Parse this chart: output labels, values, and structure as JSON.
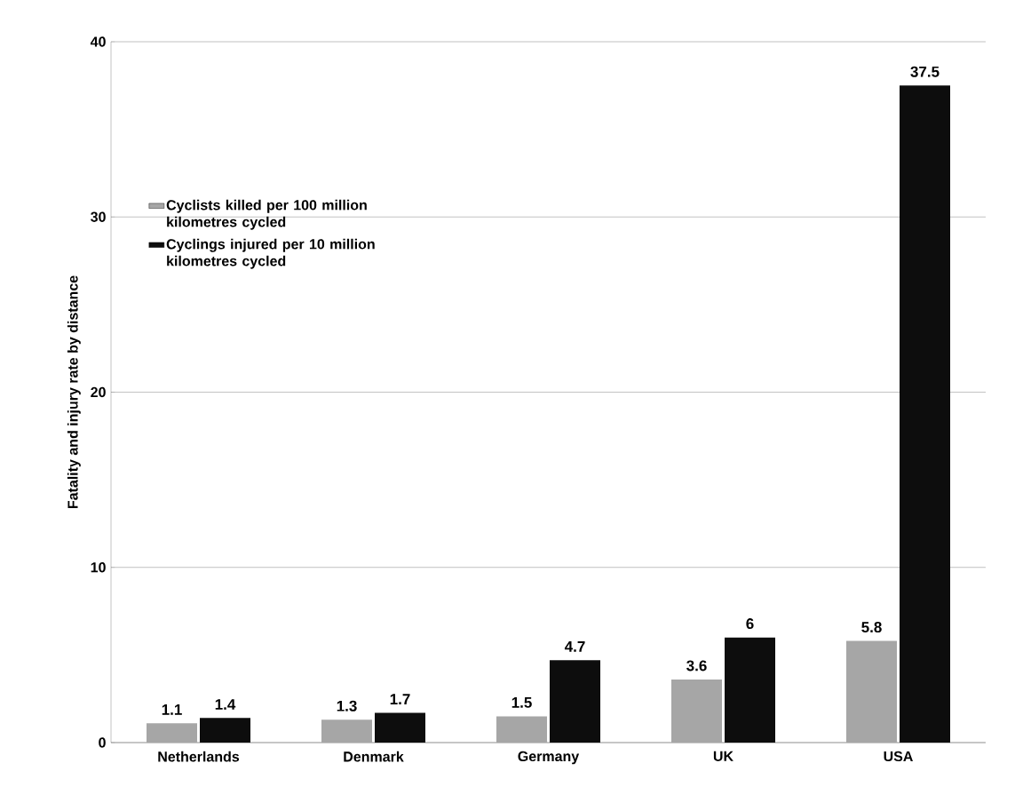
{
  "chart_data": {
    "type": "bar",
    "ylabel": "Fatality and injury rate by distance",
    "categories": [
      "Netherlands",
      "Denmark",
      "Germany",
      "UK",
      "USA"
    ],
    "series": [
      {
        "name": "Cyclists killed per 100 million kilometres cycled",
        "color": "#a6a6a6",
        "values": [
          1.1,
          1.3,
          1.5,
          3.6,
          5.8
        ]
      },
      {
        "name": "Cyclings injured per 10 million kilometres cycled",
        "color": "#0d0d0d",
        "values": [
          1.4,
          1.7,
          4.7,
          6,
          37.5
        ]
      }
    ],
    "ylim": [
      0,
      40
    ],
    "yticks": [
      0,
      10,
      20,
      30,
      40
    ],
    "grid": "y",
    "legend": "left",
    "data_labels": true
  }
}
